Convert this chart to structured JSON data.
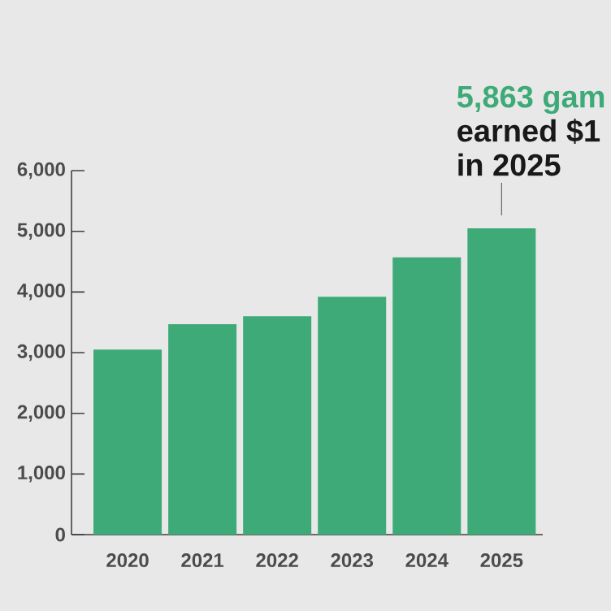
{
  "chart_data": {
    "type": "bar",
    "categories": [
      "2020",
      "2021",
      "2022",
      "2023",
      "2024",
      "2025"
    ],
    "values": [
      3050,
      3470,
      3600,
      3920,
      4570,
      5050
    ],
    "color": "#3daa78",
    "ylim": [
      0,
      6000
    ],
    "yticks": [
      0,
      {
        "value": 1000,
        "label": "1,000"
      },
      {
        "value": 2000,
        "label": "2,000"
      },
      {
        "value": 3000,
        "label": "3,000"
      },
      {
        "value": 4000,
        "label": "4,000"
      },
      {
        "value": 5000,
        "label": "5,000"
      },
      {
        "value": 6000,
        "label": "6,000"
      }
    ],
    "annotations": [
      "5,863 gam",
      "earned $1",
      "in 2025"
    ]
  }
}
